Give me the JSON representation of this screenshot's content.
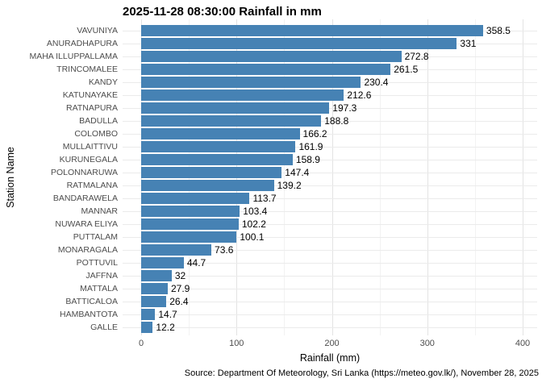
{
  "caption": "Source: Department Of Meteorology, Sri Lanka (https://meteo.gov.lk/), November 28, 2025",
  "colors": {
    "bar": "#4682B4",
    "grid_major": "#e3e3e3",
    "grid_minor": "#f2f2f2",
    "grid_horizontal": "#ebebeb",
    "axis_text": "#4d4d4d",
    "value_text": "#000000",
    "title_text": "#000000",
    "background": "#ffffff"
  },
  "chart_data": {
    "type": "bar",
    "orientation": "horizontal",
    "title": "2025-11-28 08:30:00 Rainfall in mm",
    "xlabel": "Rainfall (mm)",
    "ylabel": "Station Name",
    "xlim": [
      0,
      400
    ],
    "x_major_ticks": [
      0,
      100,
      200,
      300,
      400
    ],
    "x_minor_ticks": [
      50,
      150,
      250,
      350
    ],
    "grid": "on",
    "legend": "none",
    "bar_value_labels": "shown at bar ends",
    "categories": [
      "VAVUNIYA",
      "ANURADHAPURA",
      "MAHA ILLUPPALLAMA",
      "TRINCOMALEE",
      "KANDY",
      "KATUNAYAKE",
      "RATNAPURA",
      "BADULLA",
      "COLOMBO",
      "MULLAITTIVU",
      "KURUNEGALA",
      "POLONNARUWA",
      "RATMALANA",
      "BANDARAWELA",
      "MANNAR",
      "NUWARA ELIYA",
      "PUTTALAM",
      "MONARAGALA",
      "POTTUVIL",
      "JAFFNA",
      "MATTALA",
      "BATTICALOA",
      "HAMBANTOTA",
      "GALLE"
    ],
    "values": [
      358.5,
      331,
      272.8,
      261.5,
      230.4,
      212.6,
      197.3,
      188.8,
      166.2,
      161.9,
      158.9,
      147.4,
      139.2,
      113.7,
      103.4,
      102.2,
      100.1,
      73.6,
      44.7,
      32,
      27.9,
      26.4,
      14.7,
      12.2
    ]
  }
}
